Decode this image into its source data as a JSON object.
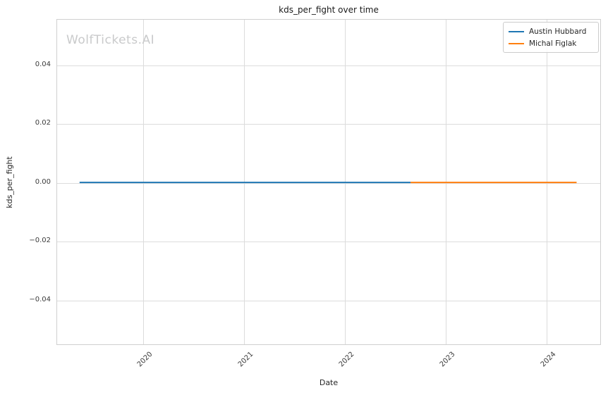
{
  "watermark": "WolfTickets.AI",
  "chart_data": {
    "type": "line",
    "title": "kds_per_fight over time",
    "xlabel": "Date",
    "ylabel": "kds_per_fight",
    "xlim": [
      2019.147,
      2024.545
    ],
    "ylim": [
      -0.0553,
      0.0556
    ],
    "grid": true,
    "legend_position": "upper right",
    "xticks": [
      2020,
      2021,
      2022,
      2023,
      2024
    ],
    "xtick_labels": [
      "2020",
      "2021",
      "2022",
      "2023",
      "2024"
    ],
    "yticks": [
      0.04,
      0.02,
      0.0,
      -0.02,
      -0.04
    ],
    "ytick_labels": [
      "0.04",
      "0.02",
      "0.00",
      "−0.02",
      "−0.04"
    ],
    "series": [
      {
        "name": "Austin Hubbard",
        "color": "#1f77b4",
        "x": [
          2019.37,
          2022.66
        ],
        "y": [
          0.0,
          0.0
        ]
      },
      {
        "name": "Michal Figlak",
        "color": "#ff7f0e",
        "x": [
          2022.66,
          2024.31
        ],
        "y": [
          0.0,
          0.0
        ]
      }
    ]
  }
}
